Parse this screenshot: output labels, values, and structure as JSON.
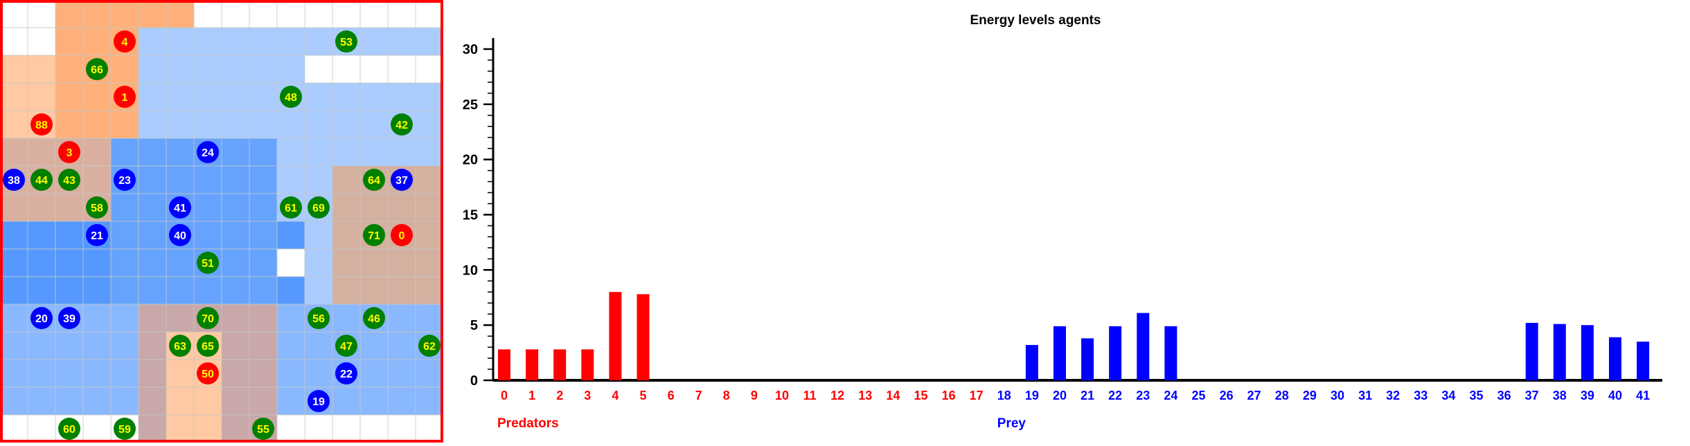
{
  "colors": {
    "predator": "#ff0000",
    "prey": "#0000ff",
    "food": "#008000",
    "agent_label_predator": "#ffff00",
    "agent_label_prey": "#ffffff",
    "agent_label_food": "#ffff00",
    "border": "#ff0000"
  },
  "grid": {
    "cols": 16,
    "rows": 16,
    "agents": [
      {
        "id": "4",
        "kind": "predator",
        "col": 4,
        "row": 1
      },
      {
        "id": "53",
        "kind": "food",
        "col": 12,
        "row": 1
      },
      {
        "id": "66",
        "kind": "food",
        "col": 3,
        "row": 2
      },
      {
        "id": "1",
        "kind": "predator",
        "col": 4,
        "row": 3
      },
      {
        "id": "48",
        "kind": "food",
        "col": 10,
        "row": 3
      },
      {
        "id": "88",
        "kind": "predator",
        "col": 1,
        "row": 4
      },
      {
        "id": "42",
        "kind": "food",
        "col": 14,
        "row": 4
      },
      {
        "id": "3",
        "kind": "predator",
        "col": 2,
        "row": 5
      },
      {
        "id": "24",
        "kind": "prey",
        "col": 7,
        "row": 5
      },
      {
        "id": "38",
        "kind": "prey",
        "col": 0,
        "row": 6
      },
      {
        "id": "44",
        "kind": "food",
        "col": 1,
        "row": 6
      },
      {
        "id": "43",
        "kind": "food",
        "col": 2,
        "row": 6
      },
      {
        "id": "23",
        "kind": "prey",
        "col": 4,
        "row": 6
      },
      {
        "id": "64",
        "kind": "food",
        "col": 13,
        "row": 6
      },
      {
        "id": "37",
        "kind": "prey",
        "col": 14,
        "row": 6
      },
      {
        "id": "58",
        "kind": "food",
        "col": 3,
        "row": 7
      },
      {
        "id": "41",
        "kind": "prey",
        "col": 6,
        "row": 7
      },
      {
        "id": "61",
        "kind": "food",
        "col": 10,
        "row": 7
      },
      {
        "id": "69",
        "kind": "food",
        "col": 11,
        "row": 7
      },
      {
        "id": "21",
        "kind": "prey",
        "col": 3,
        "row": 8
      },
      {
        "id": "40",
        "kind": "prey",
        "col": 6,
        "row": 8
      },
      {
        "id": "71",
        "kind": "food",
        "col": 13,
        "row": 8
      },
      {
        "id": "0",
        "kind": "predator",
        "col": 14,
        "row": 8
      },
      {
        "id": "51",
        "kind": "food",
        "col": 7,
        "row": 9
      },
      {
        "id": "20",
        "kind": "prey",
        "col": 1,
        "row": 11
      },
      {
        "id": "39",
        "kind": "prey",
        "col": 2,
        "row": 11
      },
      {
        "id": "70",
        "kind": "food",
        "col": 7,
        "row": 11
      },
      {
        "id": "56",
        "kind": "food",
        "col": 11,
        "row": 11
      },
      {
        "id": "46",
        "kind": "food",
        "col": 13,
        "row": 11
      },
      {
        "id": "63",
        "kind": "food",
        "col": 6,
        "row": 12
      },
      {
        "id": "65",
        "kind": "food",
        "col": 7,
        "row": 12
      },
      {
        "id": "47",
        "kind": "food",
        "col": 12,
        "row": 12
      },
      {
        "id": "62",
        "kind": "food",
        "col": 15,
        "row": 12
      },
      {
        "id": "50",
        "kind": "predator",
        "col": 7,
        "row": 13
      },
      {
        "id": "22",
        "kind": "prey",
        "col": 12,
        "row": 13
      },
      {
        "id": "19",
        "kind": "prey",
        "col": 11,
        "row": 14
      },
      {
        "id": "60",
        "kind": "food",
        "col": 2,
        "row": 15
      },
      {
        "id": "59",
        "kind": "food",
        "col": 4,
        "row": 15
      },
      {
        "id": "55",
        "kind": "food",
        "col": 9,
        "row": 15
      }
    ]
  },
  "chart_data": {
    "type": "bar",
    "title": "Energy levels agents",
    "ylim": [
      0,
      31
    ],
    "yticks": [
      "0",
      "5",
      "10",
      "15",
      "20",
      "25",
      "30"
    ],
    "categories": [
      "0",
      "1",
      "2",
      "3",
      "4",
      "5",
      "6",
      "7",
      "8",
      "9",
      "10",
      "11",
      "12",
      "13",
      "14",
      "15",
      "16",
      "17",
      "18",
      "19",
      "20",
      "21",
      "22",
      "23",
      "24",
      "25",
      "26",
      "27",
      "28",
      "29",
      "30",
      "31",
      "32",
      "33",
      "34",
      "35",
      "36",
      "37",
      "38",
      "39",
      "40",
      "41"
    ],
    "values": [
      2.8,
      2.8,
      2.8,
      2.8,
      8.0,
      7.8,
      0,
      0,
      0,
      0,
      0,
      0,
      0,
      0,
      0,
      0,
      0,
      0,
      0,
      3.2,
      4.9,
      3.8,
      4.9,
      6.1,
      4.9,
      0,
      0,
      0,
      0,
      0,
      0,
      0,
      0,
      0,
      0,
      0,
      0,
      5.2,
      5.1,
      5.0,
      3.9,
      3.5
    ],
    "groups": [
      {
        "name": "Predators",
        "from": 0,
        "to": 17,
        "color": "#ff0000"
      },
      {
        "name": "Prey",
        "from": 18,
        "to": 41,
        "color": "#0000ff"
      }
    ]
  }
}
